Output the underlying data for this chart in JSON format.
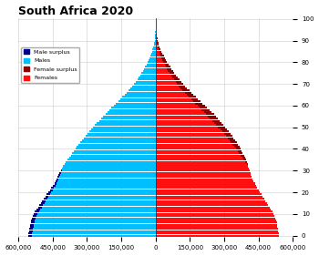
{
  "title": "South Africa 2020",
  "xlim": 600000,
  "xticks": [
    -600000,
    -450000,
    -300000,
    -150000,
    0,
    150000,
    300000,
    450000,
    600000
  ],
  "xticklabels": [
    "600,000",
    "450,000",
    "300,000",
    "150,000",
    "0",
    "150,000",
    "300,000",
    "450,000",
    "600,000"
  ],
  "male_color": "#00BFFF",
  "female_color": "#FF1010",
  "male_surplus_color": "#00008B",
  "female_surplus_color": "#8B0000",
  "background_color": "#FFFFFF",
  "grid_color": "#CCCCCC",
  "legend_labels": [
    "Male surplus",
    "Males",
    "Female surplus",
    "Females"
  ],
  "ages": [
    0,
    1,
    2,
    3,
    4,
    5,
    6,
    7,
    8,
    9,
    10,
    11,
    12,
    13,
    14,
    15,
    16,
    17,
    18,
    19,
    20,
    21,
    22,
    23,
    24,
    25,
    26,
    27,
    28,
    29,
    30,
    31,
    32,
    33,
    34,
    35,
    36,
    37,
    38,
    39,
    40,
    41,
    42,
    43,
    44,
    45,
    46,
    47,
    48,
    49,
    50,
    51,
    52,
    53,
    54,
    55,
    56,
    57,
    58,
    59,
    60,
    61,
    62,
    63,
    64,
    65,
    66,
    67,
    68,
    69,
    70,
    71,
    72,
    73,
    74,
    75,
    76,
    77,
    78,
    79,
    80,
    81,
    82,
    83,
    84,
    85,
    86,
    87,
    88,
    89,
    90,
    91,
    92,
    93,
    94,
    95,
    96,
    97,
    98,
    99,
    100
  ],
  "males": [
    558000,
    555000,
    553000,
    551000,
    549000,
    548000,
    546000,
    543000,
    540000,
    537000,
    532000,
    527000,
    521000,
    515000,
    509000,
    502000,
    496000,
    490000,
    483000,
    477000,
    470000,
    463000,
    456000,
    449000,
    443000,
    437000,
    432000,
    428000,
    424000,
    420000,
    415000,
    410000,
    404000,
    398000,
    392000,
    385000,
    378000,
    371000,
    364000,
    358000,
    351000,
    344000,
    337000,
    330000,
    323000,
    315000,
    307000,
    299000,
    291000,
    283000,
    274000,
    265000,
    256000,
    247000,
    238000,
    229000,
    220000,
    211000,
    202000,
    193000,
    183000,
    174000,
    164000,
    155000,
    145000,
    136000,
    127000,
    118000,
    110000,
    102000,
    94000,
    87000,
    80000,
    73000,
    67000,
    61000,
    55000,
    50000,
    45000,
    40000,
    35000,
    31000,
    27000,
    23000,
    19000,
    16000,
    13000,
    10000,
    8000,
    6000,
    4500,
    3300,
    2400,
    1700,
    1200,
    800,
    500,
    300,
    200,
    100,
    50
  ],
  "females": [
    541000,
    539000,
    537000,
    535000,
    533000,
    532000,
    530000,
    527000,
    524000,
    521000,
    516000,
    511000,
    505000,
    499000,
    493000,
    487000,
    481000,
    475000,
    469000,
    463000,
    457000,
    451000,
    445000,
    439000,
    434000,
    429000,
    424000,
    420000,
    417000,
    414000,
    411000,
    408000,
    405000,
    402000,
    398000,
    394000,
    390000,
    386000,
    381000,
    376000,
    371000,
    366000,
    360000,
    354000,
    348000,
    342000,
    335000,
    328000,
    321000,
    314000,
    306000,
    298000,
    290000,
    282000,
    273000,
    264000,
    255000,
    246000,
    236000,
    226000,
    216000,
    206000,
    196000,
    186000,
    176000,
    166000,
    156000,
    147000,
    138000,
    129000,
    120000,
    112000,
    104000,
    96000,
    89000,
    82000,
    75000,
    69000,
    63000,
    57000,
    51000,
    46000,
    41000,
    36000,
    31000,
    27000,
    23000,
    19000,
    15000,
    12000,
    9500,
    7300,
    5600,
    4200,
    3100,
    2200,
    1500,
    1000,
    600,
    350,
    180
  ],
  "bar_height": 0.85,
  "title_fontsize": 9,
  "tick_fontsize": 5,
  "legend_fontsize": 4.5
}
